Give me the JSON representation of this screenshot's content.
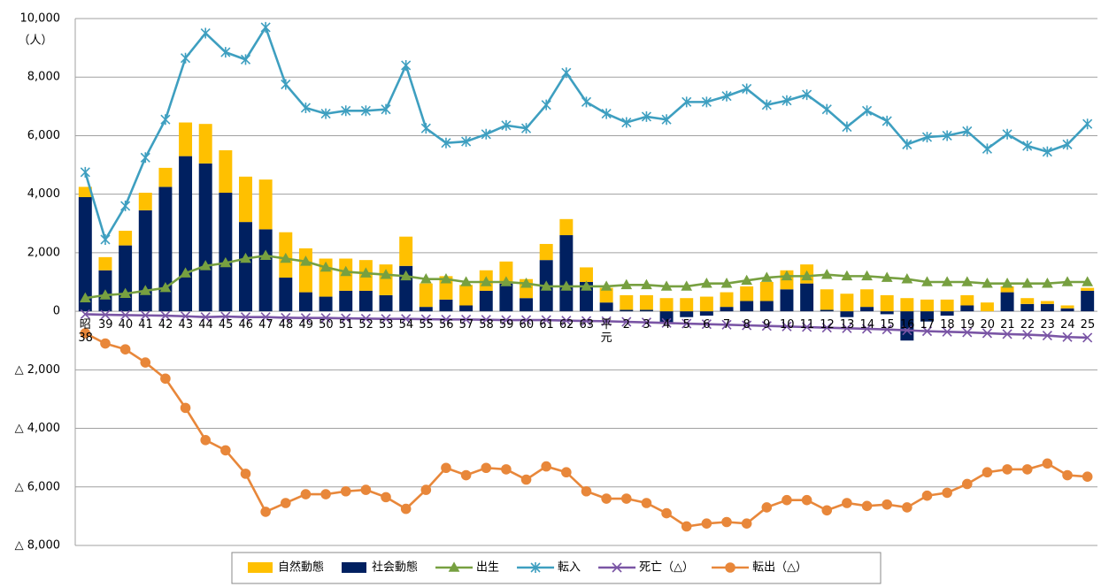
{
  "chart_data": {
    "type": "combo",
    "annotation": "（人）",
    "categories": [
      "昭38",
      "39",
      "40",
      "41",
      "42",
      "43",
      "44",
      "45",
      "46",
      "47",
      "48",
      "49",
      "50",
      "51",
      "52",
      "53",
      "54",
      "55",
      "56",
      "57",
      "58",
      "59",
      "60",
      "61",
      "62",
      "63",
      "平元",
      "2",
      "3",
      "4",
      "5",
      "6",
      "7",
      "8",
      "9",
      "10",
      "11",
      "12",
      "13",
      "14",
      "15",
      "16",
      "17",
      "18",
      "19",
      "20",
      "21",
      "22",
      "23",
      "24",
      "25"
    ],
    "ylim": [
      -8000,
      10000
    ],
    "yticks": [
      {
        "value": -8000,
        "label": "△ 8,000"
      },
      {
        "value": -6000,
        "label": "△ 6,000"
      },
      {
        "value": -4000,
        "label": "△ 4,000"
      },
      {
        "value": -2000,
        "label": "△ 2,000"
      },
      0,
      {
        "value": 2000,
        "label": "2,000"
      },
      {
        "value": 4000,
        "label": "4,000"
      },
      {
        "value": 6000,
        "label": "6,000"
      },
      {
        "value": 8000,
        "label": "8,000"
      },
      {
        "value": 10000,
        "label": "10,000"
      }
    ],
    "grid": true,
    "legend": "bottom",
    "series": [
      {
        "name": "自然動態",
        "type": "bar",
        "color": "#ffc000",
        "values": [
          350,
          450,
          500,
          600,
          650,
          1150,
          1350,
          1450,
          1550,
          1700,
          1550,
          1500,
          1300,
          1100,
          1050,
          1050,
          1000,
          800,
          800,
          700,
          700,
          750,
          650,
          550,
          550,
          500,
          500,
          500,
          500,
          450,
          450,
          500,
          500,
          500,
          650,
          650,
          650,
          700,
          600,
          600,
          550,
          450,
          400,
          400,
          350,
          300,
          200,
          200,
          100,
          100,
          100
        ]
      },
      {
        "name": "社会動態",
        "type": "bar",
        "color": "#002060",
        "values": [
          3900,
          1400,
          2250,
          3450,
          4250,
          5300,
          5050,
          4050,
          3050,
          2800,
          1150,
          650,
          500,
          700,
          700,
          550,
          1550,
          150,
          400,
          200,
          700,
          950,
          450,
          1750,
          2600,
          1000,
          300,
          50,
          50,
          -400,
          -200,
          -150,
          150,
          350,
          350,
          750,
          950,
          50,
          -200,
          150,
          -100,
          -1000,
          -350,
          -150,
          200,
          0,
          650,
          250,
          250,
          100,
          700
        ]
      },
      {
        "name": "出生",
        "type": "line",
        "marker": "triangle",
        "color": "#77a040",
        "values": [
          450,
          550,
          600,
          700,
          800,
          1300,
          1550,
          1650,
          1800,
          1900,
          1800,
          1700,
          1500,
          1350,
          1300,
          1250,
          1200,
          1100,
          1100,
          1000,
          1000,
          1000,
          950,
          850,
          850,
          850,
          850,
          900,
          900,
          850,
          850,
          950,
          950,
          1050,
          1150,
          1200,
          1200,
          1250,
          1200,
          1200,
          1150,
          1100,
          1000,
          1000,
          1000,
          950,
          950,
          950,
          950,
          1000,
          1000
        ]
      },
      {
        "name": "転入",
        "type": "line",
        "marker": "asterisk",
        "color": "#3e9fc0",
        "values": [
          4750,
          2450,
          3600,
          5250,
          6550,
          8650,
          9500,
          8850,
          8600,
          9700,
          7750,
          6950,
          6750,
          6850,
          6850,
          6900,
          8400,
          6250,
          5750,
          5800,
          6050,
          6350,
          6250,
          7050,
          8150,
          7150,
          6750,
          6450,
          6650,
          6550,
          7150,
          7150,
          7350,
          7600,
          7050,
          7200,
          7400,
          6900,
          6300,
          6850,
          6500,
          5700,
          5950,
          6000,
          6150,
          5550,
          6050,
          5650,
          5450,
          5700,
          6400
        ]
      },
      {
        "name": "死亡（△）",
        "type": "line",
        "marker": "x",
        "color": "#7a55a5",
        "values": [
          -100,
          -120,
          -130,
          -140,
          -150,
          -170,
          -200,
          -180,
          -200,
          -200,
          -220,
          -230,
          -230,
          -240,
          -250,
          -260,
          -260,
          -270,
          -280,
          -280,
          -290,
          -300,
          -300,
          -300,
          -320,
          -330,
          -340,
          -360,
          -380,
          -400,
          -420,
          -440,
          -460,
          -480,
          -500,
          -520,
          -540,
          -560,
          -580,
          -600,
          -620,
          -650,
          -680,
          -700,
          -720,
          -750,
          -780,
          -800,
          -830,
          -880,
          -900
        ]
      },
      {
        "name": "転出（△）",
        "type": "line",
        "marker": "circle",
        "color": "#e8873a",
        "values": [
          -750,
          -1100,
          -1300,
          -1750,
          -2300,
          -3300,
          -4400,
          -4750,
          -5550,
          -6850,
          -6550,
          -6250,
          -6250,
          -6150,
          -6100,
          -6350,
          -6750,
          -6100,
          -5350,
          -5600,
          -5350,
          -5400,
          -5750,
          -5300,
          -5500,
          -6150,
          -6400,
          -6400,
          -6550,
          -6900,
          -7350,
          -7250,
          -7200,
          -7250,
          -6700,
          -6450,
          -6450,
          -6800,
          -6550,
          -6650,
          -6600,
          -6700,
          -6300,
          -6200,
          -5900,
          -5500,
          -5400,
          -5400,
          -5200,
          -5600,
          -5650
        ]
      }
    ]
  }
}
